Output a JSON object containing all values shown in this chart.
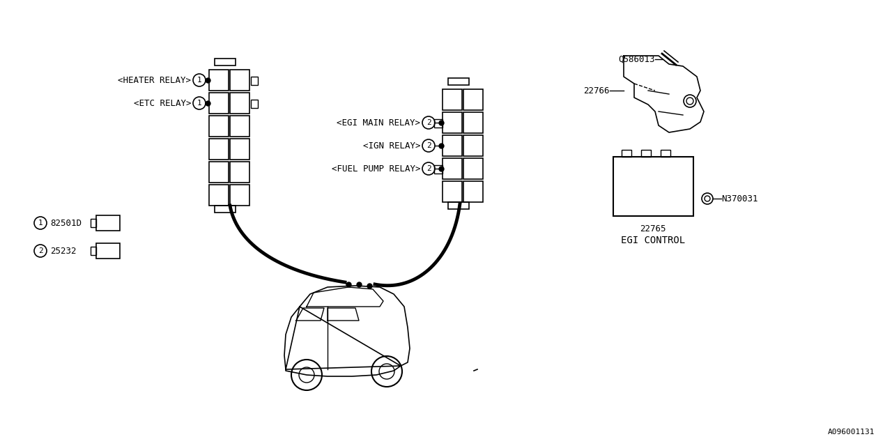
{
  "bg_color": "#ffffff",
  "line_color": "#000000",
  "font_family": "monospace",
  "diagram_id": "A096001131",
  "labels": {
    "heater_relay": "<HEATER RELAY>",
    "etc_relay": "<ETC RELAY>",
    "egi_main_relay": "<EGI MAIN RELAY>",
    "ign_relay": "<IGN RELAY>",
    "fuel_pump_relay": "<FUEL PUMP RELAY>",
    "part1": "82501D",
    "part2": "25232",
    "part3": "Q586013",
    "part4": "22766",
    "part5": "22765",
    "part6": "N370031",
    "egi_control": "EGI CONTROL"
  }
}
